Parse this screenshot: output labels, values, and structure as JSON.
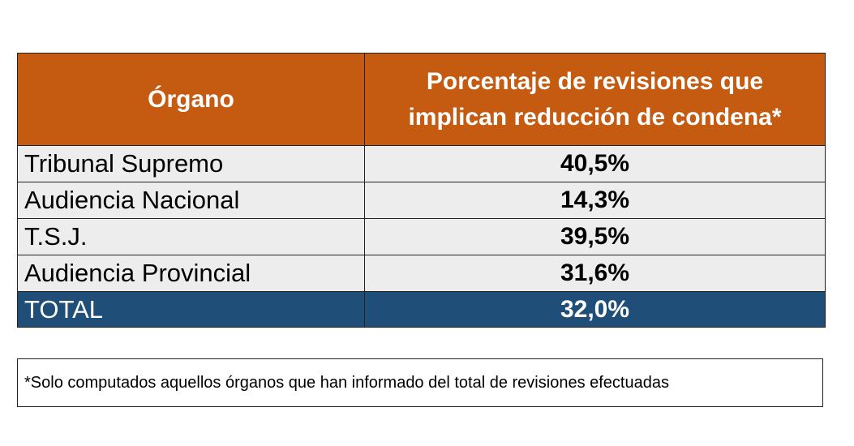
{
  "table": {
    "header": {
      "organo": "Órgano",
      "percentage_line1": "Porcentaje de revisiones que",
      "percentage_line2": "implican reducción de condena*"
    },
    "rows": [
      {
        "organo": "Tribunal Supremo",
        "value": "40,5%"
      },
      {
        "organo": "Audiencia Nacional",
        "value": "14,3%"
      },
      {
        "organo": "T.S.J.",
        "value": "39,5%"
      },
      {
        "organo": "Audiencia Provincial",
        "value": "31,6%"
      }
    ],
    "total": {
      "organo": "TOTAL",
      "value": "32,0%"
    }
  },
  "footnote": "*Solo computados aquellos órganos que han informado del total de revisiones efectuadas",
  "colors": {
    "header_bg": "#c55a11",
    "row_bg": "#ededed",
    "total_bg": "#1f4e79"
  }
}
